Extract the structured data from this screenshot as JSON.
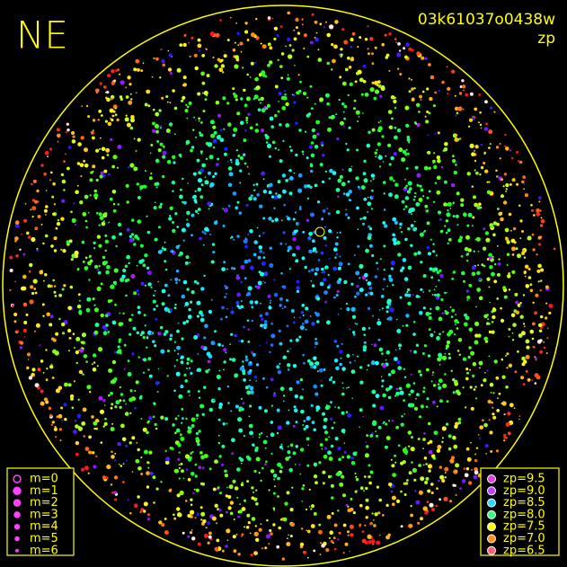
{
  "header": {
    "title": "NE",
    "frame_id": "03k61037o0438w",
    "mode": "zp"
  },
  "magnitude_legend": [
    {
      "label": "m=0"
    },
    {
      "label": "m=1"
    },
    {
      "label": "m=2"
    },
    {
      "label": "m=3"
    },
    {
      "label": "m=4"
    },
    {
      "label": "m=5"
    },
    {
      "label": "m=6"
    }
  ],
  "zp_legend": [
    {
      "label": "zp=9.5",
      "color": "#e040e0"
    },
    {
      "label": "zp=9.0",
      "color": "#c040ff"
    },
    {
      "label": "zp=8.5",
      "color": "#30d8ff"
    },
    {
      "label": "zp=8.0",
      "color": "#30ff80"
    },
    {
      "label": "zp=7.5",
      "color": "#ffff00"
    },
    {
      "label": "zp=7.0",
      "color": "#ff9020"
    },
    {
      "label": "zp=6.5",
      "color": "#ff6070"
    }
  ]
}
